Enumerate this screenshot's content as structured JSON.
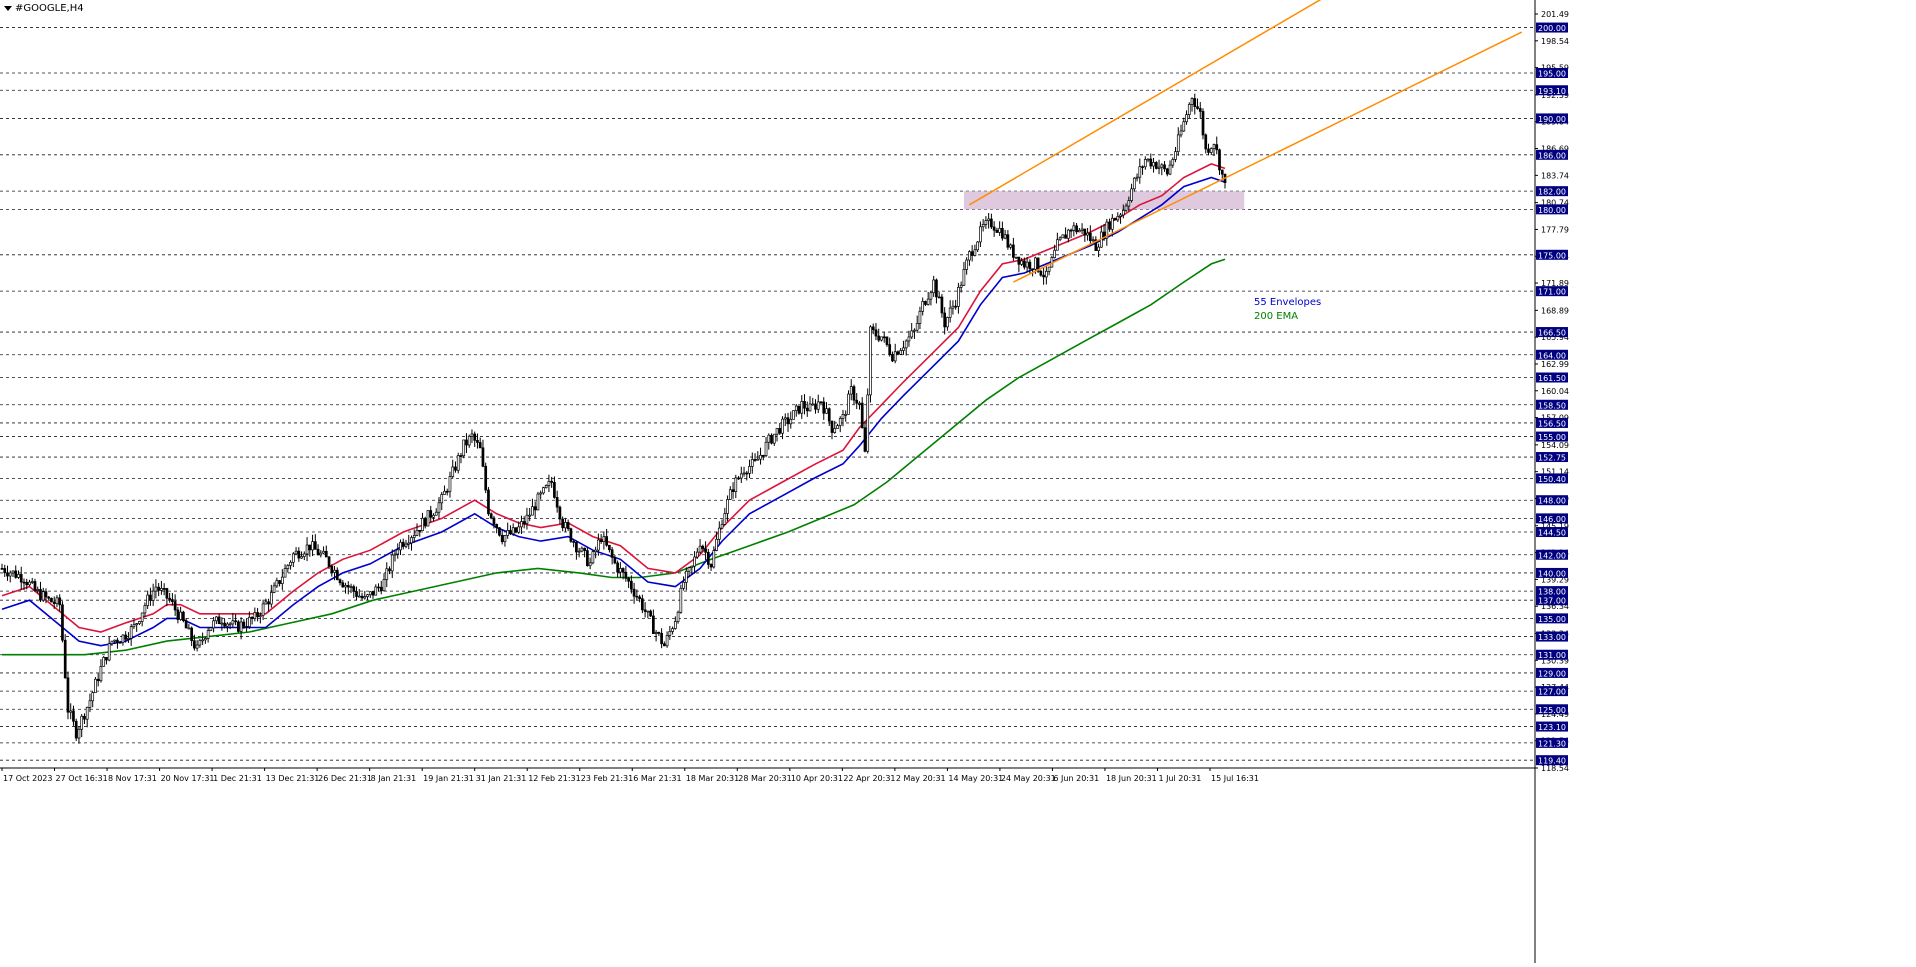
{
  "window": {
    "title": "#GOOGLE,H4"
  },
  "colors": {
    "candle": "#000000",
    "envelope_upper": "#dc143c",
    "envelope_lower": "#0000cd",
    "ema200": "#008000",
    "channel": "#ff8c00",
    "zone": "#d8bfd8",
    "grid": "#1a1a2e",
    "label_bg": "#000080",
    "label_text": "#ffffff",
    "legend_env": "#0000cd",
    "legend_ema": "#008000"
  },
  "legend": {
    "envelopes": "55 Envelopes",
    "ema": "200 EMA"
  },
  "chart_data": {
    "type": "candlestick",
    "symbol": "#GOOGLE",
    "timeframe": "H4",
    "ylim": [
      118.54,
      201.49
    ],
    "y_axis_ticks": [
      "201.49",
      "198.54",
      "195.59",
      "192.59",
      "189.64",
      "186.69",
      "183.74",
      "180.74",
      "177.79",
      "174.84",
      "171.89",
      "168.89",
      "165.94",
      "162.99",
      "160.04",
      "157.09",
      "154.09",
      "151.14",
      "148.19",
      "145.19",
      "142.24",
      "139.29",
      "136.34",
      "133.34",
      "130.39",
      "127.44",
      "124.49",
      "121.54",
      "118.54"
    ],
    "horizontal_levels": [
      "200.00",
      "195.00",
      "193.10",
      "190.00",
      "186.00",
      "182.00",
      "180.00",
      "175.00",
      "171.00",
      "166.50",
      "164.00",
      "161.50",
      "158.50",
      "156.50",
      "155.00",
      "152.75",
      "150.40",
      "148.00",
      "146.00",
      "144.50",
      "142.00",
      "140.00",
      "138.00",
      "137.00",
      "135.00",
      "133.00",
      "131.00",
      "129.00",
      "127.00",
      "125.00",
      "123.10",
      "121.30",
      "119.40"
    ],
    "x_tick_labels": [
      "17 Oct 2023",
      "27 Oct 16:31",
      "8 Nov 17:31",
      "20 Nov 17:31",
      "1 Dec 21:31",
      "13 Dec 21:31",
      "26 Dec 21:31",
      "8 Jan 21:31",
      "19 Jan 21:31",
      "31 Jan 21:31",
      "12 Feb 21:31",
      "23 Feb 21:31",
      "6 Mar 21:31",
      "18 Mar 20:31",
      "28 Mar 20:31",
      "10 Apr 20:31",
      "22 Apr 20:31",
      "2 May 20:31",
      "14 May 20:31",
      "24 May 20:31",
      "6 Jun 20:31",
      "18 Jun 20:31",
      "1 Jul 20:31",
      "15 Jul 16:31"
    ],
    "close_path": [
      [
        0,
        140.5
      ],
      [
        8,
        139.5
      ],
      [
        12,
        138
      ],
      [
        17,
        137
      ],
      [
        21,
        136.5
      ],
      [
        24,
        125
      ],
      [
        27,
        122.5
      ],
      [
        32,
        126
      ],
      [
        36,
        129.5
      ],
      [
        40,
        132.5
      ],
      [
        44,
        133
      ],
      [
        48,
        134
      ],
      [
        52,
        136.5
      ],
      [
        56,
        138.5
      ],
      [
        61,
        137
      ],
      [
        66,
        134.5
      ],
      [
        71,
        131.5
      ],
      [
        75,
        134
      ],
      [
        80,
        135
      ],
      [
        85,
        134
      ],
      [
        92,
        135
      ],
      [
        98,
        137.5
      ],
      [
        106,
        142
      ],
      [
        112,
        143
      ],
      [
        118,
        141.5
      ],
      [
        124,
        139
      ],
      [
        132,
        137
      ],
      [
        139,
        139
      ],
      [
        144,
        143
      ],
      [
        150,
        144.5
      ],
      [
        156,
        146.5
      ],
      [
        160,
        148
      ],
      [
        164,
        151
      ],
      [
        168,
        154
      ],
      [
        171,
        155
      ],
      [
        174,
        153.5
      ],
      [
        177,
        147
      ],
      [
        182,
        144
      ],
      [
        187,
        144.5
      ],
      [
        191,
        146
      ],
      [
        195,
        148
      ],
      [
        200,
        150
      ],
      [
        204,
        145.5
      ],
      [
        209,
        143
      ],
      [
        214,
        141
      ],
      [
        218,
        144
      ],
      [
        223,
        141
      ],
      [
        228,
        139
      ],
      [
        232,
        137
      ],
      [
        237,
        134
      ],
      [
        241,
        132
      ],
      [
        245,
        135
      ],
      [
        248,
        139
      ],
      [
        251,
        140.5
      ],
      [
        254,
        143.5
      ],
      [
        258,
        141
      ],
      [
        262,
        146
      ],
      [
        266,
        149.5
      ],
      [
        270,
        151.5
      ],
      [
        274,
        152
      ],
      [
        279,
        154.5
      ],
      [
        283,
        156
      ],
      [
        287,
        157
      ],
      [
        291,
        158.5
      ],
      [
        294,
        158
      ],
      [
        298,
        159
      ],
      [
        302,
        156
      ],
      [
        306,
        157
      ],
      [
        309,
        160
      ],
      [
        312,
        158.5
      ],
      [
        314,
        153
      ],
      [
        316,
        166.5
      ],
      [
        320,
        166
      ],
      [
        324,
        164
      ],
      [
        329,
        165.5
      ],
      [
        332,
        166.5
      ],
      [
        335,
        169.5
      ],
      [
        339,
        172
      ],
      [
        343,
        167.5
      ],
      [
        347,
        170
      ],
      [
        352,
        175
      ],
      [
        357,
        178
      ],
      [
        360,
        178.5
      ],
      [
        364,
        177.5
      ],
      [
        367,
        175.5
      ],
      [
        372,
        174
      ],
      [
        376,
        174
      ],
      [
        380,
        172.5
      ],
      [
        384,
        176
      ],
      [
        389,
        178
      ],
      [
        394,
        177.5
      ],
      [
        398,
        176
      ],
      [
        403,
        178.5
      ],
      [
        408,
        180
      ],
      [
        412,
        183
      ],
      [
        416,
        185.5
      ],
      [
        420,
        185
      ],
      [
        424,
        184
      ],
      [
        427,
        186.5
      ],
      [
        430,
        189.5
      ],
      [
        433,
        192.5
      ],
      [
        436,
        190.5
      ],
      [
        438,
        186.5
      ],
      [
        441,
        187.5
      ],
      [
        443,
        185
      ],
      [
        445,
        182.5
      ]
    ],
    "envelope_upper_path": [
      [
        0,
        137.5
      ],
      [
        10,
        138.5
      ],
      [
        20,
        136
      ],
      [
        28,
        134
      ],
      [
        36,
        133.5
      ],
      [
        45,
        134.5
      ],
      [
        55,
        135.5
      ],
      [
        60,
        136.5
      ],
      [
        65,
        136.5
      ],
      [
        72,
        135.5
      ],
      [
        80,
        135.5
      ],
      [
        88,
        135.5
      ],
      [
        96,
        135.5
      ],
      [
        106,
        138
      ],
      [
        115,
        140
      ],
      [
        124,
        141.5
      ],
      [
        134,
        142.5
      ],
      [
        146,
        144.5
      ],
      [
        160,
        146
      ],
      [
        172,
        148
      ],
      [
        180,
        146.5
      ],
      [
        188,
        145.5
      ],
      [
        196,
        145
      ],
      [
        206,
        145.5
      ],
      [
        215,
        144
      ],
      [
        225,
        143
      ],
      [
        235,
        140.5
      ],
      [
        245,
        140
      ],
      [
        254,
        142
      ],
      [
        262,
        145
      ],
      [
        272,
        148
      ],
      [
        284,
        150
      ],
      [
        296,
        152
      ],
      [
        306,
        153.5
      ],
      [
        312,
        156
      ],
      [
        320,
        158.5
      ],
      [
        328,
        161
      ],
      [
        338,
        164
      ],
      [
        348,
        167
      ],
      [
        356,
        171
      ],
      [
        364,
        174
      ],
      [
        372,
        174.5
      ],
      [
        384,
        176
      ],
      [
        396,
        177.5
      ],
      [
        406,
        179
      ],
      [
        414,
        180.5
      ],
      [
        422,
        181.5
      ],
      [
        430,
        183.5
      ],
      [
        440,
        185
      ],
      [
        445,
        184.5
      ]
    ],
    "envelope_lower_path": [
      [
        0,
        136
      ],
      [
        10,
        137
      ],
      [
        20,
        134.5
      ],
      [
        28,
        132.5
      ],
      [
        36,
        132
      ],
      [
        45,
        132.5
      ],
      [
        55,
        134
      ],
      [
        60,
        135
      ],
      [
        65,
        135
      ],
      [
        72,
        134
      ],
      [
        80,
        134
      ],
      [
        88,
        134
      ],
      [
        96,
        134
      ],
      [
        106,
        136.5
      ],
      [
        115,
        138.5
      ],
      [
        124,
        140
      ],
      [
        134,
        141
      ],
      [
        146,
        143
      ],
      [
        160,
        144.5
      ],
      [
        172,
        146.5
      ],
      [
        180,
        145
      ],
      [
        188,
        144
      ],
      [
        196,
        143.5
      ],
      [
        206,
        144
      ],
      [
        215,
        142.5
      ],
      [
        225,
        141.5
      ],
      [
        235,
        139
      ],
      [
        245,
        138.5
      ],
      [
        254,
        140.5
      ],
      [
        262,
        143.5
      ],
      [
        272,
        146.5
      ],
      [
        284,
        148.5
      ],
      [
        296,
        150.5
      ],
      [
        306,
        152
      ],
      [
        312,
        154
      ],
      [
        320,
        157
      ],
      [
        328,
        159.5
      ],
      [
        338,
        162.5
      ],
      [
        348,
        165.5
      ],
      [
        356,
        169.5
      ],
      [
        364,
        172.5
      ],
      [
        372,
        173
      ],
      [
        384,
        174.5
      ],
      [
        396,
        176
      ],
      [
        406,
        177.5
      ],
      [
        414,
        179
      ],
      [
        422,
        180.5
      ],
      [
        430,
        182.5
      ],
      [
        440,
        183.5
      ],
      [
        445,
        183
      ]
    ],
    "ema200_path": [
      [
        0,
        131
      ],
      [
        15,
        131
      ],
      [
        30,
        131
      ],
      [
        45,
        131.5
      ],
      [
        60,
        132.5
      ],
      [
        75,
        133
      ],
      [
        90,
        133.5
      ],
      [
        105,
        134.5
      ],
      [
        120,
        135.5
      ],
      [
        135,
        137
      ],
      [
        150,
        138
      ],
      [
        165,
        139
      ],
      [
        180,
        140
      ],
      [
        195,
        140.5
      ],
      [
        210,
        140
      ],
      [
        222,
        139.5
      ],
      [
        232,
        139.5
      ],
      [
        245,
        140
      ],
      [
        258,
        141.5
      ],
      [
        272,
        143
      ],
      [
        286,
        144.5
      ],
      [
        298,
        146
      ],
      [
        310,
        147.5
      ],
      [
        322,
        150
      ],
      [
        334,
        153
      ],
      [
        346,
        156
      ],
      [
        358,
        159
      ],
      [
        370,
        161.5
      ],
      [
        382,
        163.5
      ],
      [
        394,
        165.5
      ],
      [
        406,
        167.5
      ],
      [
        418,
        169.5
      ],
      [
        430,
        172
      ],
      [
        440,
        174
      ],
      [
        445,
        174.5
      ]
    ],
    "channel_upper": [
      [
        352,
        180.5
      ],
      [
        485,
        204
      ]
    ],
    "channel_lower": [
      [
        368,
        172
      ],
      [
        553,
        199.5
      ]
    ],
    "resistance_zone": {
      "x_range": [
        350,
        452
      ],
      "y_range": [
        180,
        182
      ]
    }
  }
}
